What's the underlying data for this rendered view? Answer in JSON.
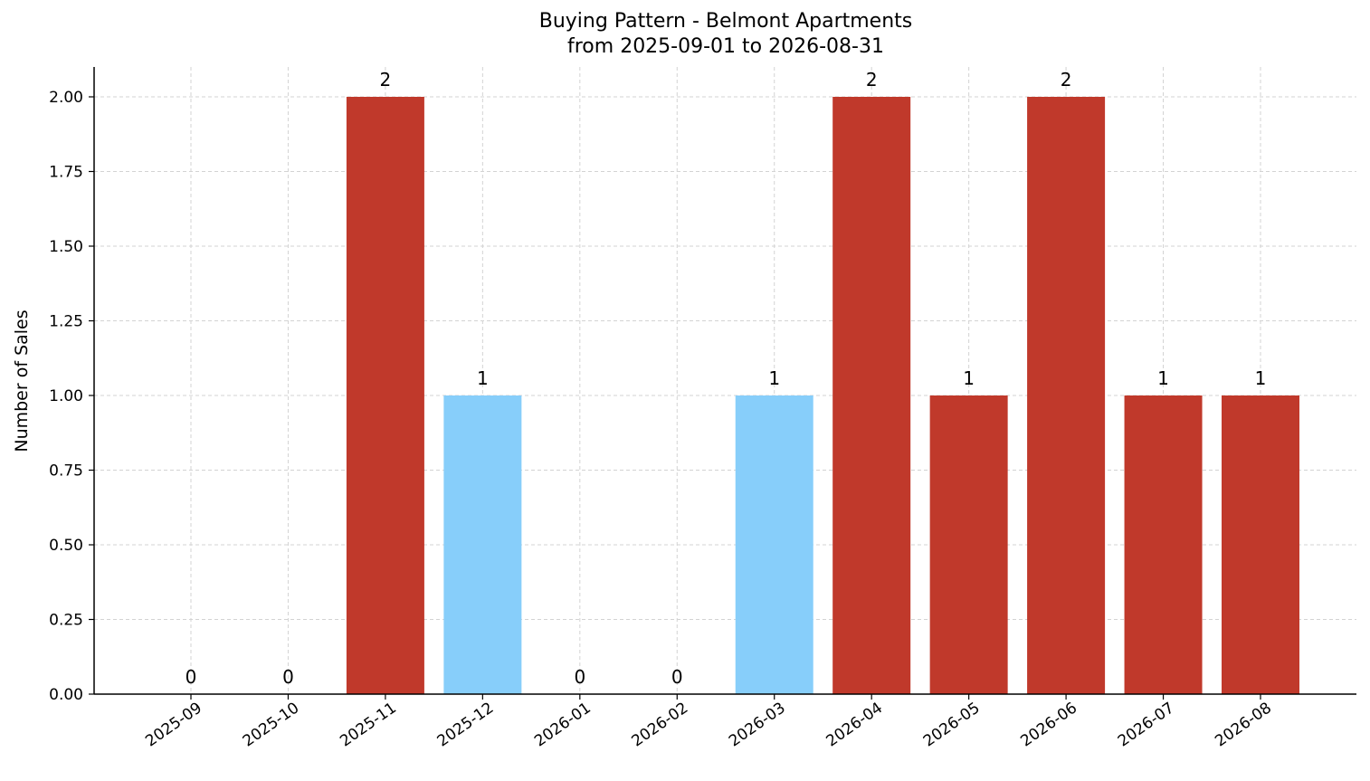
{
  "chart_data": {
    "type": "bar",
    "title": "Buying Pattern - Belmont Apartments",
    "subtitle": "from 2025-09-01 to 2026-08-31",
    "xlabel": "",
    "ylabel": "Number of Sales",
    "categories": [
      "2025-09",
      "2025-10",
      "2025-11",
      "2025-12",
      "2026-01",
      "2026-02",
      "2026-03",
      "2026-04",
      "2026-05",
      "2026-06",
      "2026-07",
      "2026-08"
    ],
    "values": [
      0,
      0,
      2,
      1,
      0,
      0,
      1,
      2,
      1,
      2,
      1,
      1
    ],
    "data_labels": [
      "0",
      "0",
      "2",
      "1",
      "0",
      "0",
      "1",
      "2",
      "1",
      "2",
      "1",
      "1"
    ],
    "bar_colors": [
      "#c0392b",
      "#c0392b",
      "#c0392b",
      "#87cefa",
      "#c0392b",
      "#c0392b",
      "#87cefa",
      "#c0392b",
      "#c0392b",
      "#c0392b",
      "#c0392b",
      "#c0392b"
    ],
    "ylim": [
      0,
      2.1
    ],
    "yticks": [
      "0.00",
      "0.25",
      "0.50",
      "0.75",
      "1.00",
      "1.25",
      "1.50",
      "1.75",
      "2.00"
    ],
    "grid": true,
    "legend": "none"
  }
}
